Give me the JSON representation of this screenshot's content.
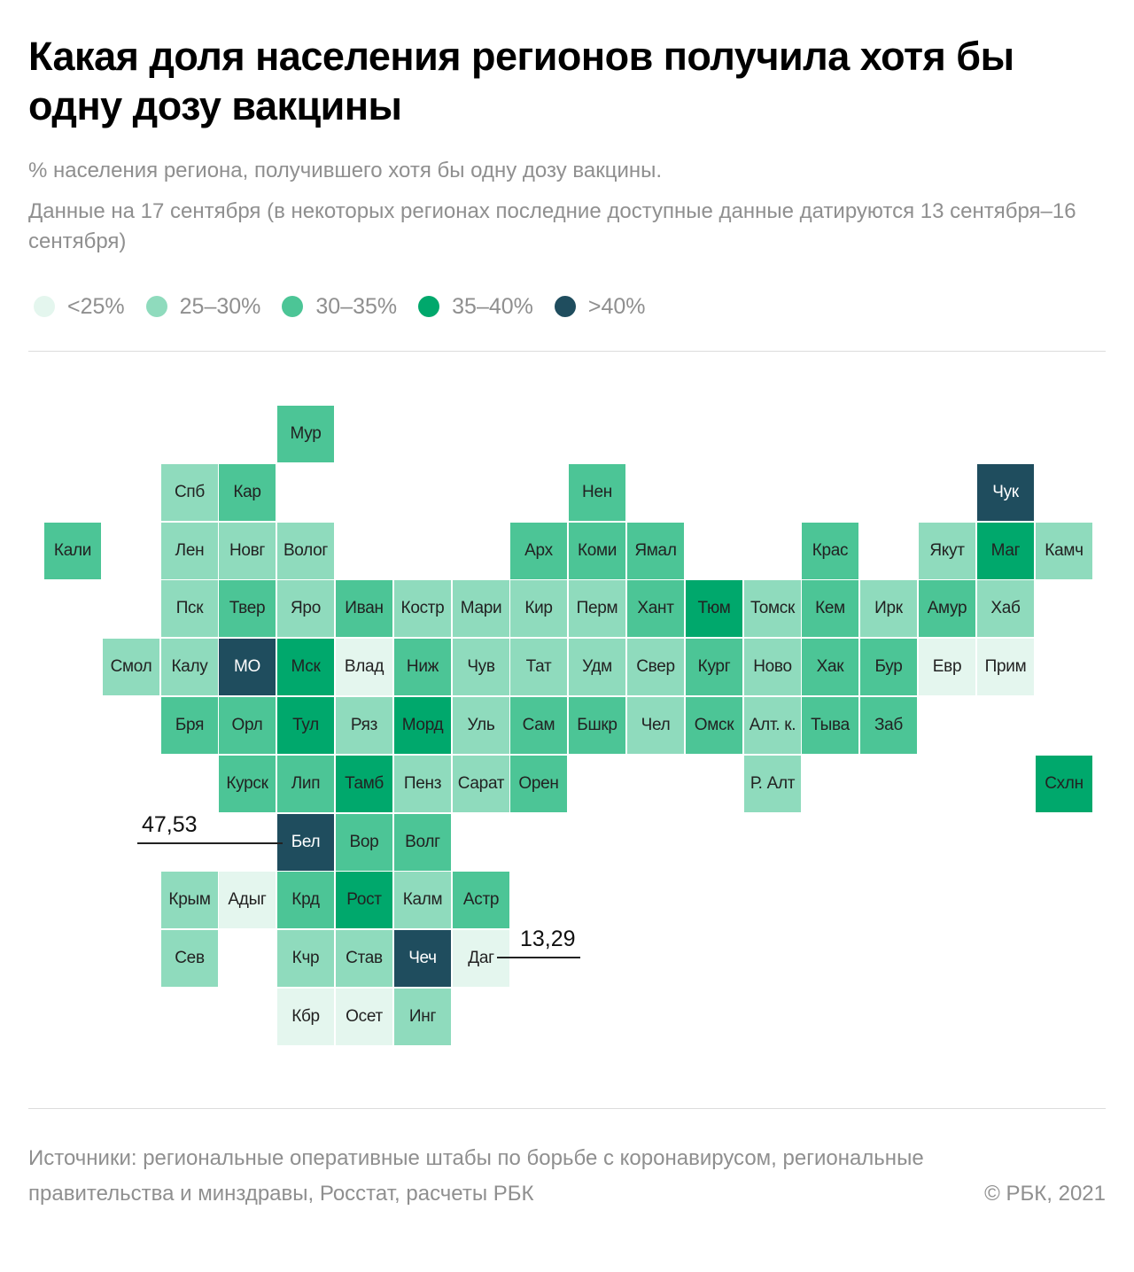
{
  "title": "Какая доля населения регионов получила хотя бы одну дозу вакцины",
  "subtitle": "% населения региона, получившего хотя бы одну дозу вакцины.",
  "note": "Данные на 17 сентября (в некоторых регионах последние доступные данные датируются 13 сентября–16 сентября)",
  "legend": [
    {
      "label": "<25%",
      "color": "#e4f6ee"
    },
    {
      "label": "25–30%",
      "color": "#8fdbbd"
    },
    {
      "label": "30–35%",
      "color": "#4cc596"
    },
    {
      "label": "35–40%",
      "color": "#00a86c"
    },
    {
      "label": ">40%",
      "color": "#1f4d5e"
    }
  ],
  "chart_data": {
    "type": "heatmap",
    "bins": [
      "<25%",
      "25–30%",
      "30–35%",
      "35–40%",
      ">40%"
    ],
    "regions": [
      {
        "label": "Мур",
        "col": 4,
        "row": 0,
        "bin": 2
      },
      {
        "label": "Спб",
        "col": 2,
        "row": 1,
        "bin": 1
      },
      {
        "label": "Кар",
        "col": 3,
        "row": 1,
        "bin": 2
      },
      {
        "label": "Нен",
        "col": 9,
        "row": 1,
        "bin": 2
      },
      {
        "label": "Чук",
        "col": 16,
        "row": 1,
        "bin": 4
      },
      {
        "label": "Кали",
        "col": 0,
        "row": 2,
        "bin": 2
      },
      {
        "label": "Лен",
        "col": 2,
        "row": 2,
        "bin": 1
      },
      {
        "label": "Новг",
        "col": 3,
        "row": 2,
        "bin": 1
      },
      {
        "label": "Волог",
        "col": 4,
        "row": 2,
        "bin": 1
      },
      {
        "label": "Арх",
        "col": 8,
        "row": 2,
        "bin": 2
      },
      {
        "label": "Коми",
        "col": 9,
        "row": 2,
        "bin": 2
      },
      {
        "label": "Ямал",
        "col": 10,
        "row": 2,
        "bin": 2
      },
      {
        "label": "Крас",
        "col": 13,
        "row": 2,
        "bin": 2
      },
      {
        "label": "Якут",
        "col": 15,
        "row": 2,
        "bin": 1
      },
      {
        "label": "Маг",
        "col": 16,
        "row": 2,
        "bin": 3
      },
      {
        "label": "Камч",
        "col": 17,
        "row": 2,
        "bin": 1
      },
      {
        "label": "Пск",
        "col": 2,
        "row": 3,
        "bin": 1
      },
      {
        "label": "Твер",
        "col": 3,
        "row": 3,
        "bin": 2
      },
      {
        "label": "Яро",
        "col": 4,
        "row": 3,
        "bin": 1
      },
      {
        "label": "Иван",
        "col": 5,
        "row": 3,
        "bin": 2
      },
      {
        "label": "Костр",
        "col": 6,
        "row": 3,
        "bin": 1
      },
      {
        "label": "Мари",
        "col": 7,
        "row": 3,
        "bin": 1
      },
      {
        "label": "Кир",
        "col": 8,
        "row": 3,
        "bin": 1
      },
      {
        "label": "Перм",
        "col": 9,
        "row": 3,
        "bin": 1
      },
      {
        "label": "Хант",
        "col": 10,
        "row": 3,
        "bin": 2
      },
      {
        "label": "Тюм",
        "col": 11,
        "row": 3,
        "bin": 3
      },
      {
        "label": "Томск",
        "col": 12,
        "row": 3,
        "bin": 1
      },
      {
        "label": "Кем",
        "col": 13,
        "row": 3,
        "bin": 2
      },
      {
        "label": "Ирк",
        "col": 14,
        "row": 3,
        "bin": 1
      },
      {
        "label": "Амур",
        "col": 15,
        "row": 3,
        "bin": 2
      },
      {
        "label": "Хаб",
        "col": 16,
        "row": 3,
        "bin": 1
      },
      {
        "label": "Смол",
        "col": 1,
        "row": 4,
        "bin": 1
      },
      {
        "label": "Калу",
        "col": 2,
        "row": 4,
        "bin": 1
      },
      {
        "label": "МО",
        "col": 3,
        "row": 4,
        "bin": 4
      },
      {
        "label": "Мск",
        "col": 4,
        "row": 4,
        "bin": 3
      },
      {
        "label": "Влад",
        "col": 5,
        "row": 4,
        "bin": 0
      },
      {
        "label": "Ниж",
        "col": 6,
        "row": 4,
        "bin": 2
      },
      {
        "label": "Чув",
        "col": 7,
        "row": 4,
        "bin": 1
      },
      {
        "label": "Тат",
        "col": 8,
        "row": 4,
        "bin": 1
      },
      {
        "label": "Удм",
        "col": 9,
        "row": 4,
        "bin": 1
      },
      {
        "label": "Свер",
        "col": 10,
        "row": 4,
        "bin": 1
      },
      {
        "label": "Кург",
        "col": 11,
        "row": 4,
        "bin": 2
      },
      {
        "label": "Ново",
        "col": 12,
        "row": 4,
        "bin": 1
      },
      {
        "label": "Хак",
        "col": 13,
        "row": 4,
        "bin": 2
      },
      {
        "label": "Бур",
        "col": 14,
        "row": 4,
        "bin": 2
      },
      {
        "label": "Евр",
        "col": 15,
        "row": 4,
        "bin": 0
      },
      {
        "label": "Прим",
        "col": 16,
        "row": 4,
        "bin": 0
      },
      {
        "label": "Бря",
        "col": 2,
        "row": 5,
        "bin": 2
      },
      {
        "label": "Орл",
        "col": 3,
        "row": 5,
        "bin": 2
      },
      {
        "label": "Тул",
        "col": 4,
        "row": 5,
        "bin": 3
      },
      {
        "label": "Ряз",
        "col": 5,
        "row": 5,
        "bin": 1
      },
      {
        "label": "Морд",
        "col": 6,
        "row": 5,
        "bin": 3
      },
      {
        "label": "Уль",
        "col": 7,
        "row": 5,
        "bin": 1
      },
      {
        "label": "Сам",
        "col": 8,
        "row": 5,
        "bin": 2
      },
      {
        "label": "Бшкр",
        "col": 9,
        "row": 5,
        "bin": 2
      },
      {
        "label": "Чел",
        "col": 10,
        "row": 5,
        "bin": 1
      },
      {
        "label": "Омск",
        "col": 11,
        "row": 5,
        "bin": 2
      },
      {
        "label": "Алт. к.",
        "col": 12,
        "row": 5,
        "bin": 1
      },
      {
        "label": "Тыва",
        "col": 13,
        "row": 5,
        "bin": 2
      },
      {
        "label": "Заб",
        "col": 14,
        "row": 5,
        "bin": 2
      },
      {
        "label": "Курск",
        "col": 3,
        "row": 6,
        "bin": 2
      },
      {
        "label": "Лип",
        "col": 4,
        "row": 6,
        "bin": 2
      },
      {
        "label": "Тамб",
        "col": 5,
        "row": 6,
        "bin": 3
      },
      {
        "label": "Пенз",
        "col": 6,
        "row": 6,
        "bin": 1
      },
      {
        "label": "Сарат",
        "col": 7,
        "row": 6,
        "bin": 1
      },
      {
        "label": "Орен",
        "col": 8,
        "row": 6,
        "bin": 2
      },
      {
        "label": "Р. Алт",
        "col": 12,
        "row": 6,
        "bin": 1
      },
      {
        "label": "Схлн",
        "col": 17,
        "row": 6,
        "bin": 3
      },
      {
        "label": "Бел",
        "col": 4,
        "row": 7,
        "bin": 4
      },
      {
        "label": "Вор",
        "col": 5,
        "row": 7,
        "bin": 2
      },
      {
        "label": "Волг",
        "col": 6,
        "row": 7,
        "bin": 2
      },
      {
        "label": "Крым",
        "col": 2,
        "row": 8,
        "bin": 1
      },
      {
        "label": "Адыг",
        "col": 3,
        "row": 8,
        "bin": 0
      },
      {
        "label": "Крд",
        "col": 4,
        "row": 8,
        "bin": 2
      },
      {
        "label": "Рост",
        "col": 5,
        "row": 8,
        "bin": 3
      },
      {
        "label": "Калм",
        "col": 6,
        "row": 8,
        "bin": 1
      },
      {
        "label": "Астр",
        "col": 7,
        "row": 8,
        "bin": 2
      },
      {
        "label": "Сев",
        "col": 2,
        "row": 9,
        "bin": 1
      },
      {
        "label": "Кчр",
        "col": 4,
        "row": 9,
        "bin": 1
      },
      {
        "label": "Став",
        "col": 5,
        "row": 9,
        "bin": 1
      },
      {
        "label": "Чеч",
        "col": 6,
        "row": 9,
        "bin": 4
      },
      {
        "label": "Даг",
        "col": 7,
        "row": 9,
        "bin": 0
      },
      {
        "label": "Кбр",
        "col": 4,
        "row": 10,
        "bin": 0
      },
      {
        "label": "Осет",
        "col": 5,
        "row": 10,
        "bin": 0
      },
      {
        "label": "Инг",
        "col": 6,
        "row": 10,
        "bin": 1
      }
    ],
    "annotations": [
      {
        "region": "Бел",
        "value": "47,53",
        "side": "left"
      },
      {
        "region": "Даг",
        "value": "13,29",
        "side": "right"
      }
    ]
  },
  "footer": {
    "source": "Источники: региональные оперативные штабы по борьбе с коронавирусом, региональные правительства и минздравы, Росстат, расчеты РБК",
    "copyright": "©  РБК, 2021"
  }
}
